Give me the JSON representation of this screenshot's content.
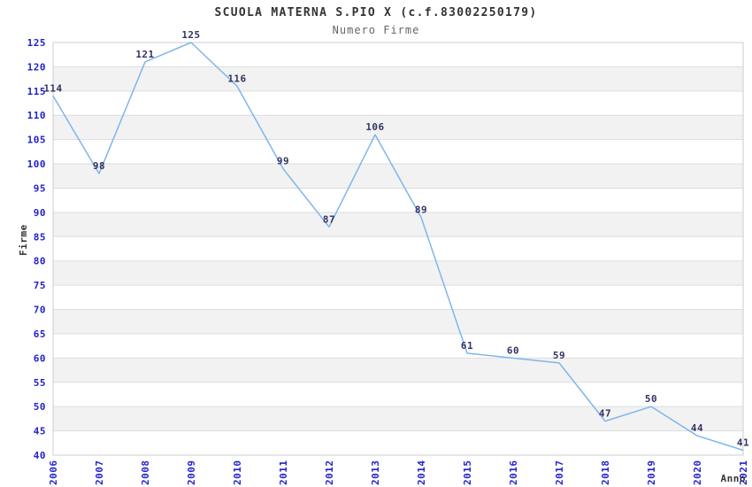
{
  "header": {
    "title": "SCUOLA MATERNA S.PIO X (c.f.83002250179)",
    "subtitle": "Numero Firme"
  },
  "colors": {
    "line": "#7eb6ec",
    "tick_label": "#2222cc",
    "data_label": "#333366",
    "band": "#f2f2f2",
    "gridline": "#dddddd",
    "plot_border": "#cccccc",
    "title": "#333333",
    "subtitle": "#666666",
    "axis_title": "#333333",
    "background": "#ffffff"
  },
  "chart_data": {
    "type": "line",
    "title": "SCUOLA MATERNA S.PIO X (c.f.83002250179)",
    "subtitle": "Numero Firme",
    "xlabel": "Anno",
    "ylabel": "Firme",
    "categories": [
      "2006",
      "2007",
      "2008",
      "2009",
      "2010",
      "2011",
      "2012",
      "2013",
      "2014",
      "2015",
      "2016",
      "2017",
      "2018",
      "2019",
      "2020",
      "2021"
    ],
    "values": [
      114,
      98,
      121,
      125,
      116,
      99,
      87,
      106,
      89,
      61,
      60,
      59,
      47,
      50,
      44,
      41
    ],
    "ylim": [
      40,
      125
    ],
    "ytick_step": 5,
    "grid": "horizontal",
    "alternating_bands": true,
    "legend_position": "none",
    "data_labels": true,
    "x_tick_rotation": -90,
    "markers": "none"
  }
}
